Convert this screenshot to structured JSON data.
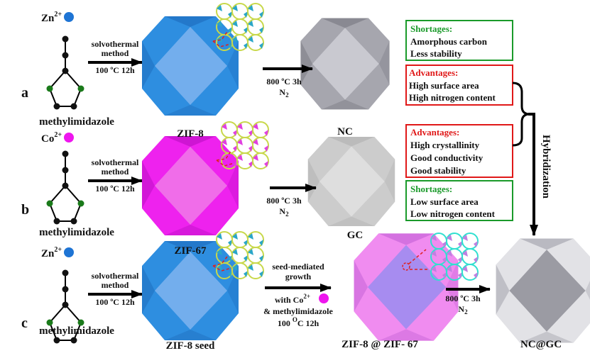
{
  "colors": {
    "zn": "#1e74d4",
    "co": "#ee16ee",
    "zif8": "#2e8ee0",
    "zif67": "#ee22ee",
    "nc": "#9a9aa2",
    "gc": "#c8c8c8",
    "shortage": "#1a9a2a",
    "advantage": "#e01818",
    "nitrogen_atom": "#1a7a1a",
    "carbon_atom": "#111111"
  },
  "rows": {
    "a": {
      "letter": "a",
      "ion": "Zn",
      "charge": "2+",
      "ligand": "methylimidazole",
      "cond1": "solvothermal",
      "cond2": "method",
      "cond3": "100 ºC 12h",
      "mof": "ZIF-8",
      "carb_cond1": "800 ºC 3h",
      "carb_gas": "N",
      "carb_gas_sub": "2",
      "product": "NC"
    },
    "b": {
      "letter": "b",
      "ion": "Co",
      "charge": "2+",
      "ligand": "methylimidazole",
      "cond1": "solvothermal",
      "cond2": "method",
      "cond3": "100 ºC 12h",
      "mof": "ZIF-67",
      "carb_cond1": "800 ºC 3h",
      "carb_gas": "N",
      "carb_gas_sub": "2",
      "product": "GC"
    },
    "c": {
      "letter": "c",
      "ion": "Zn",
      "charge": "2+",
      "ligand": "methylimidazole",
      "cond1": "solvothermal",
      "cond2": "method",
      "cond3": "100 ºC 12h",
      "mof": "ZIF-8 seed",
      "growth1": "seed-mediated",
      "growth2": "growth",
      "growth3": "with Co",
      "growth3_sup": "2+",
      "growth4": "& methylimidazole",
      "growth5": "100 ",
      "growth5_sup": "O",
      "growth5_end": "C 12h",
      "core_shell": "ZIF-8 @ ZIF- 67",
      "carb_cond1": "800 ºC 3h",
      "carb_gas": "N",
      "carb_gas_sub": "2",
      "product": "NC@GC"
    }
  },
  "boxes": [
    {
      "type": "shortage",
      "title": "Shortages:",
      "lines": [
        "Amorphous carbon",
        "Less stability"
      ]
    },
    {
      "type": "advantage",
      "title": "Advantages:",
      "lines": [
        "High surface area",
        "High nitrogen content"
      ]
    },
    {
      "type": "advantage",
      "title": "Advantages:",
      "lines": [
        "High crystallinity",
        "Good conductivity",
        "Good stability"
      ]
    },
    {
      "type": "shortage",
      "title": "Shortages:",
      "lines": [
        "Low surface area",
        "Low nitrogen content"
      ]
    }
  ],
  "hybridization": "Hybridization"
}
